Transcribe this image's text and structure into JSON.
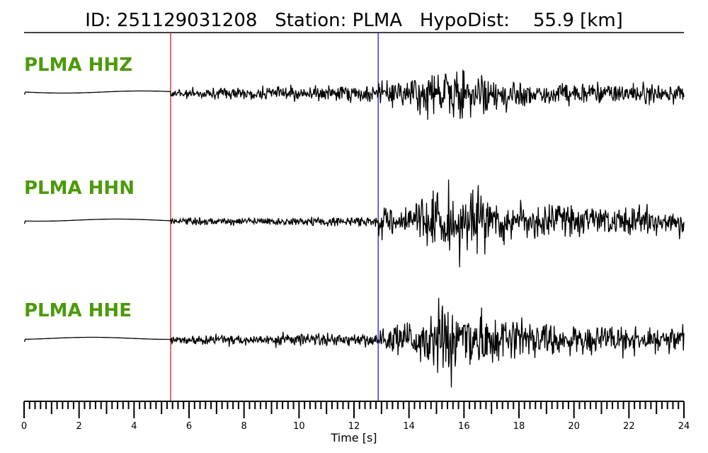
{
  "chart_data": {
    "type": "line",
    "title": "ID: 251129031208   Station: PLMA   HypoDist:    55.9 [km]",
    "xlabel": "Time [s]",
    "xlim": [
      0,
      24
    ],
    "xticks": [
      "0",
      "2",
      "4",
      "6",
      "8",
      "10",
      "12",
      "14",
      "16",
      "18",
      "20",
      "22",
      "24"
    ],
    "minor_tick_interval": 0.2,
    "traces": [
      {
        "label": "PLMA HHZ",
        "channel": "HHZ",
        "peak_time": 15.1
      },
      {
        "label": "PLMA HHN",
        "channel": "HHN",
        "peak_time": 15.4
      },
      {
        "label": "PLMA HHE",
        "channel": "HHE",
        "peak_time": 15.4
      }
    ],
    "picks": [
      {
        "phase": "P",
        "time": 5.33,
        "color": "#e8191a"
      },
      {
        "phase": "S",
        "time": 12.88,
        "color": "#1a1ae8"
      }
    ],
    "label_color": "#4c9a0a",
    "trace_color": "#000000"
  }
}
